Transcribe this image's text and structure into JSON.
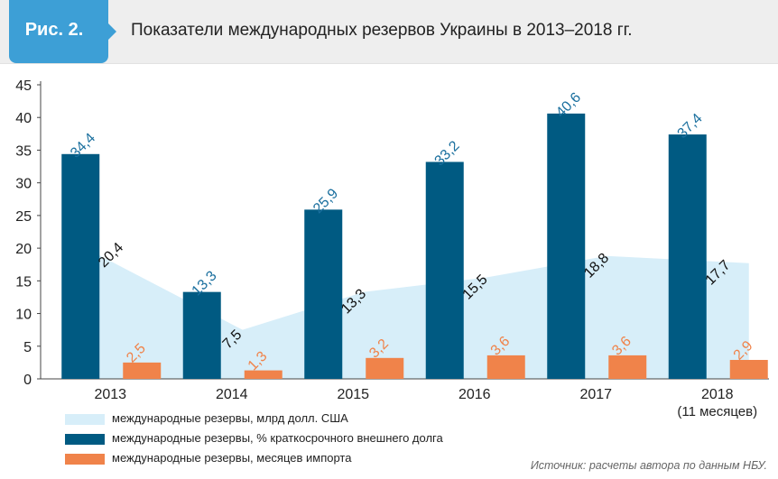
{
  "header": {
    "figure_label": "Рис. 2.",
    "title": "Показатели международных резервов Украины в 2013–2018 гг.",
    "badge_color": "#3d9fd6"
  },
  "chart_data": {
    "type": "bar",
    "categories": [
      "2013",
      "2014",
      "2015",
      "2016",
      "2017",
      "2018"
    ],
    "category_sublabels": [
      "",
      "",
      "",
      "",
      "",
      "(11 месяцев)"
    ],
    "ylim": [
      0,
      45
    ],
    "yticks": [
      0,
      5,
      10,
      15,
      20,
      25,
      30,
      35,
      40,
      45
    ],
    "grid": false,
    "series": [
      {
        "name": "международные резервы, млрд долл. США",
        "kind": "area",
        "color": "#d7eef9",
        "values": [
          20.4,
          7.5,
          13.3,
          15.5,
          18.8,
          17.7
        ],
        "labels": [
          "20,4",
          "7,5",
          "13,3",
          "15,5",
          "18,8",
          "17,7"
        ],
        "label_color": "#111111"
      },
      {
        "name": "международные резервы, % краткосрочного внешнего долга",
        "kind": "bar",
        "color": "#005a82",
        "values": [
          34.4,
          13.3,
          25.9,
          33.2,
          40.6,
          37.4
        ],
        "labels": [
          "34,4",
          "13,3",
          "25,9",
          "33,2",
          "40,6",
          "37,4"
        ],
        "label_color": "#1a6f9e"
      },
      {
        "name": "международные резервы, месяцев импорта",
        "kind": "bar",
        "color": "#f0834a",
        "values": [
          2.5,
          1.3,
          3.2,
          3.6,
          3.6,
          2.9
        ],
        "labels": [
          "2,5",
          "1,3",
          "3,2",
          "3,6",
          "3,6",
          "2,9"
        ],
        "label_color": "#f0834a"
      }
    ],
    "legend_position": "bottom-left"
  },
  "source_note": "Источник: расчеты автора по данным НБУ."
}
